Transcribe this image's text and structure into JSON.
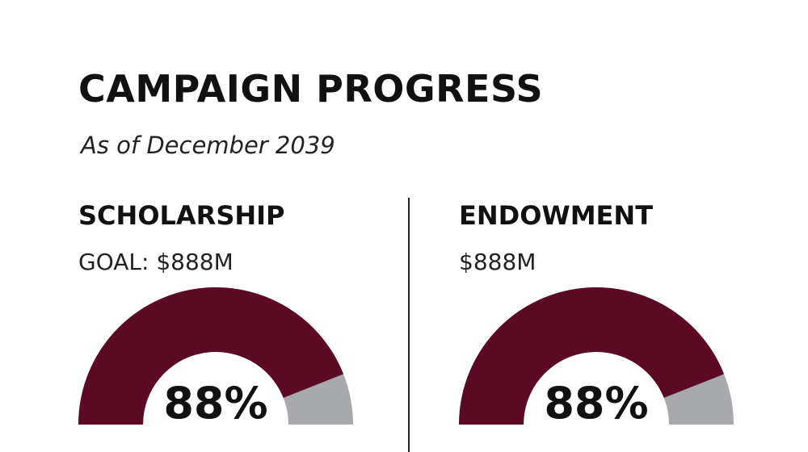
{
  "header": {
    "title": "CAMPAIGN PROGRESS",
    "subtitle": "As of December 2039"
  },
  "chart_data": [
    {
      "type": "gauge",
      "title": "SCHOLARSHIP",
      "subtitle": "GOAL: $888M",
      "values": [
        88
      ],
      "value_labels": [
        "88%"
      ],
      "ylim": [
        0,
        100
      ],
      "color": "#5c0a24",
      "track_color": "#a7a9ac"
    },
    {
      "type": "gauge",
      "title": "ENDOWMENT",
      "subtitle": "$888M",
      "values": [
        88
      ],
      "value_labels": [
        "88%"
      ],
      "ylim": [
        0,
        100
      ],
      "color": "#5c0a24",
      "track_color": "#a7a9ac"
    }
  ]
}
